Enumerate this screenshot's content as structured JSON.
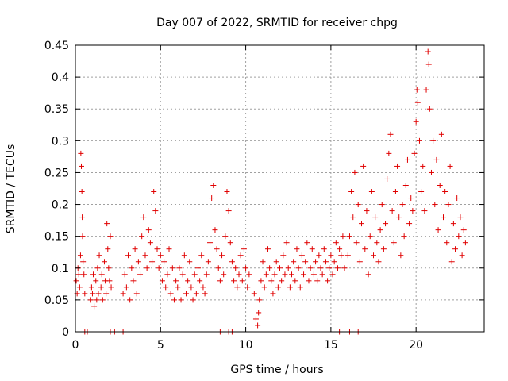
{
  "chart_data": {
    "type": "scatter",
    "title": "Day 007 of 2022, SRMTID for receiver chpg",
    "xlabel": "GPS time / hours",
    "ylabel": "SRMTID / TECUs",
    "xlim": [
      0,
      24
    ],
    "ylim": [
      0,
      0.45
    ],
    "x_ticks": [
      0,
      5,
      10,
      15,
      20
    ],
    "x_tick_labels": [
      "0",
      "5",
      "10",
      "15",
      "20"
    ],
    "y_ticks": [
      0,
      0.05,
      0.1,
      0.15,
      0.2,
      0.25,
      0.3,
      0.35,
      0.4,
      0.45
    ],
    "y_tick_labels": [
      "0",
      "0.05",
      "0.1",
      "0.15",
      "0.2",
      "0.25",
      "0.3",
      "0.35",
      "0.4",
      "0.45"
    ],
    "grid": true,
    "marker": "+",
    "color": "#e00000",
    "series": [
      {
        "name": "SRMTID",
        "points": [
          [
            0.05,
            0.08
          ],
          [
            0.1,
            0.06
          ],
          [
            0.15,
            0.1
          ],
          [
            0.2,
            0.09
          ],
          [
            0.25,
            0.07
          ],
          [
            0.3,
            0.12
          ],
          [
            0.32,
            0.28
          ],
          [
            0.35,
            0.26
          ],
          [
            0.38,
            0.22
          ],
          [
            0.4,
            0.18
          ],
          [
            0.42,
            0.15
          ],
          [
            0.45,
            0.11
          ],
          [
            0.5,
            0.09
          ],
          [
            0.55,
            0.06
          ],
          [
            0.9,
            0.05
          ],
          [
            0.95,
            0.07
          ],
          [
            1.0,
            0.06
          ],
          [
            1.05,
            0.09
          ],
          [
            1.1,
            0.04
          ],
          [
            1.2,
            0.08
          ],
          [
            1.25,
            0.05
          ],
          [
            1.3,
            0.1
          ],
          [
            1.35,
            0.06
          ],
          [
            1.4,
            0.12
          ],
          [
            1.5,
            0.07
          ],
          [
            1.55,
            0.09
          ],
          [
            1.6,
            0.05
          ],
          [
            1.7,
            0.11
          ],
          [
            1.75,
            0.08
          ],
          [
            1.8,
            0.06
          ],
          [
            1.85,
            0.17
          ],
          [
            1.9,
            0.13
          ],
          [
            1.95,
            0.1
          ],
          [
            2.0,
            0.08
          ],
          [
            2.05,
            0.15
          ],
          [
            2.1,
            0.07
          ],
          [
            2.8,
            0.06
          ],
          [
            2.9,
            0.09
          ],
          [
            3.0,
            0.07
          ],
          [
            3.1,
            0.12
          ],
          [
            3.2,
            0.05
          ],
          [
            3.3,
            0.1
          ],
          [
            3.4,
            0.08
          ],
          [
            3.5,
            0.13
          ],
          [
            3.6,
            0.06
          ],
          [
            3.7,
            0.11
          ],
          [
            3.8,
            0.09
          ],
          [
            3.9,
            0.15
          ],
          [
            4.0,
            0.18
          ],
          [
            4.1,
            0.12
          ],
          [
            4.2,
            0.1
          ],
          [
            4.3,
            0.16
          ],
          [
            4.4,
            0.14
          ],
          [
            4.5,
            0.11
          ],
          [
            4.6,
            0.22
          ],
          [
            4.7,
            0.19
          ],
          [
            4.8,
            0.13
          ],
          [
            4.9,
            0.1
          ],
          [
            5.0,
            0.12
          ],
          [
            5.1,
            0.08
          ],
          [
            5.2,
            0.11
          ],
          [
            5.3,
            0.07
          ],
          [
            5.4,
            0.09
          ],
          [
            5.5,
            0.13
          ],
          [
            5.6,
            0.06
          ],
          [
            5.7,
            0.1
          ],
          [
            5.8,
            0.05
          ],
          [
            5.9,
            0.08
          ],
          [
            6.0,
            0.07
          ],
          [
            6.1,
            0.1
          ],
          [
            6.2,
            0.05
          ],
          [
            6.3,
            0.09
          ],
          [
            6.4,
            0.12
          ],
          [
            6.5,
            0.06
          ],
          [
            6.6,
            0.08
          ],
          [
            6.7,
            0.11
          ],
          [
            6.8,
            0.07
          ],
          [
            6.9,
            0.05
          ],
          [
            7.0,
            0.09
          ],
          [
            7.1,
            0.06
          ],
          [
            7.2,
            0.1
          ],
          [
            7.3,
            0.08
          ],
          [
            7.4,
            0.12
          ],
          [
            7.5,
            0.07
          ],
          [
            7.6,
            0.06
          ],
          [
            7.7,
            0.09
          ],
          [
            7.8,
            0.11
          ],
          [
            7.9,
            0.14
          ],
          [
            8.0,
            0.21
          ],
          [
            8.1,
            0.23
          ],
          [
            8.2,
            0.16
          ],
          [
            8.3,
            0.13
          ],
          [
            8.4,
            0.1
          ],
          [
            8.5,
            0.08
          ],
          [
            8.6,
            0.12
          ],
          [
            8.7,
            0.09
          ],
          [
            8.8,
            0.15
          ],
          [
            8.9,
            0.22
          ],
          [
            9.0,
            0.19
          ],
          [
            9.1,
            0.14
          ],
          [
            9.2,
            0.11
          ],
          [
            9.3,
            0.08
          ],
          [
            9.4,
            0.1
          ],
          [
            9.5,
            0.07
          ],
          [
            9.6,
            0.09
          ],
          [
            9.7,
            0.12
          ],
          [
            9.8,
            0.08
          ],
          [
            9.9,
            0.13
          ],
          [
            10.0,
            0.1
          ],
          [
            10.1,
            0.07
          ],
          [
            10.2,
            0.09
          ],
          [
            10.5,
            0.06
          ],
          [
            10.6,
            0.02
          ],
          [
            10.7,
            0.01
          ],
          [
            10.75,
            0.03
          ],
          [
            10.8,
            0.05
          ],
          [
            10.9,
            0.08
          ],
          [
            11.0,
            0.11
          ],
          [
            11.1,
            0.07
          ],
          [
            11.2,
            0.09
          ],
          [
            11.3,
            0.13
          ],
          [
            11.4,
            0.1
          ],
          [
            11.5,
            0.08
          ],
          [
            11.6,
            0.06
          ],
          [
            11.7,
            0.09
          ],
          [
            11.8,
            0.11
          ],
          [
            11.9,
            0.07
          ],
          [
            12.0,
            0.1
          ],
          [
            12.1,
            0.08
          ],
          [
            12.2,
            0.12
          ],
          [
            12.3,
            0.09
          ],
          [
            12.4,
            0.14
          ],
          [
            12.5,
            0.1
          ],
          [
            12.6,
            0.07
          ],
          [
            12.7,
            0.09
          ],
          [
            12.8,
            0.11
          ],
          [
            12.9,
            0.08
          ],
          [
            13.0,
            0.13
          ],
          [
            13.1,
            0.1
          ],
          [
            13.2,
            0.07
          ],
          [
            13.3,
            0.12
          ],
          [
            13.4,
            0.09
          ],
          [
            13.5,
            0.11
          ],
          [
            13.6,
            0.14
          ],
          [
            13.7,
            0.08
          ],
          [
            13.8,
            0.1
          ],
          [
            13.9,
            0.13
          ],
          [
            14.0,
            0.09
          ],
          [
            14.1,
            0.11
          ],
          [
            14.2,
            0.08
          ],
          [
            14.3,
            0.12
          ],
          [
            14.4,
            0.1
          ],
          [
            14.5,
            0.09
          ],
          [
            14.6,
            0.13
          ],
          [
            14.7,
            0.11
          ],
          [
            14.8,
            0.08
          ],
          [
            14.9,
            0.1
          ],
          [
            15.0,
            0.12
          ],
          [
            15.1,
            0.09
          ],
          [
            15.2,
            0.11
          ],
          [
            15.3,
            0.14
          ],
          [
            15.4,
            0.1
          ],
          [
            15.5,
            0.13
          ],
          [
            15.6,
            0.12
          ],
          [
            15.7,
            0.15
          ],
          [
            15.8,
            0.1
          ],
          [
            16.0,
            0.12
          ],
          [
            16.1,
            0.15
          ],
          [
            16.2,
            0.22
          ],
          [
            16.3,
            0.18
          ],
          [
            16.4,
            0.25
          ],
          [
            16.5,
            0.14
          ],
          [
            16.6,
            0.2
          ],
          [
            16.7,
            0.11
          ],
          [
            16.8,
            0.17
          ],
          [
            16.9,
            0.26
          ],
          [
            17.0,
            0.13
          ],
          [
            17.1,
            0.19
          ],
          [
            17.2,
            0.09
          ],
          [
            17.3,
            0.15
          ],
          [
            17.4,
            0.22
          ],
          [
            17.5,
            0.12
          ],
          [
            17.6,
            0.18
          ],
          [
            17.7,
            0.14
          ],
          [
            17.8,
            0.11
          ],
          [
            17.9,
            0.16
          ],
          [
            18.0,
            0.2
          ],
          [
            18.1,
            0.13
          ],
          [
            18.2,
            0.17
          ],
          [
            18.3,
            0.24
          ],
          [
            18.4,
            0.28
          ],
          [
            18.5,
            0.31
          ],
          [
            18.6,
            0.19
          ],
          [
            18.7,
            0.14
          ],
          [
            18.8,
            0.22
          ],
          [
            18.9,
            0.26
          ],
          [
            19.0,
            0.18
          ],
          [
            19.1,
            0.12
          ],
          [
            19.2,
            0.2
          ],
          [
            19.3,
            0.15
          ],
          [
            19.4,
            0.23
          ],
          [
            19.5,
            0.27
          ],
          [
            19.6,
            0.17
          ],
          [
            19.7,
            0.21
          ],
          [
            19.8,
            0.19
          ],
          [
            19.9,
            0.28
          ],
          [
            20.0,
            0.33
          ],
          [
            20.05,
            0.38
          ],
          [
            20.1,
            0.36
          ],
          [
            20.2,
            0.3
          ],
          [
            20.3,
            0.22
          ],
          [
            20.4,
            0.26
          ],
          [
            20.5,
            0.19
          ],
          [
            20.6,
            0.38
          ],
          [
            20.7,
            0.44
          ],
          [
            20.75,
            0.42
          ],
          [
            20.8,
            0.35
          ],
          [
            20.9,
            0.25
          ],
          [
            21.0,
            0.3
          ],
          [
            21.1,
            0.2
          ],
          [
            21.2,
            0.27
          ],
          [
            21.3,
            0.16
          ],
          [
            21.4,
            0.23
          ],
          [
            21.5,
            0.31
          ],
          [
            21.6,
            0.18
          ],
          [
            21.7,
            0.22
          ],
          [
            21.8,
            0.14
          ],
          [
            21.9,
            0.2
          ],
          [
            22.0,
            0.26
          ],
          [
            22.1,
            0.11
          ],
          [
            22.2,
            0.17
          ],
          [
            22.3,
            0.13
          ],
          [
            22.4,
            0.21
          ],
          [
            22.5,
            0.15
          ],
          [
            22.6,
            0.18
          ],
          [
            22.7,
            0.12
          ],
          [
            22.8,
            0.16
          ],
          [
            22.9,
            0.14
          ]
        ]
      }
    ],
    "zero_points_x": [
      0.55,
      0.7,
      2.05,
      2.3,
      2.8,
      8.5,
      9.0,
      9.2,
      15.5,
      16.1,
      16.6
    ]
  }
}
